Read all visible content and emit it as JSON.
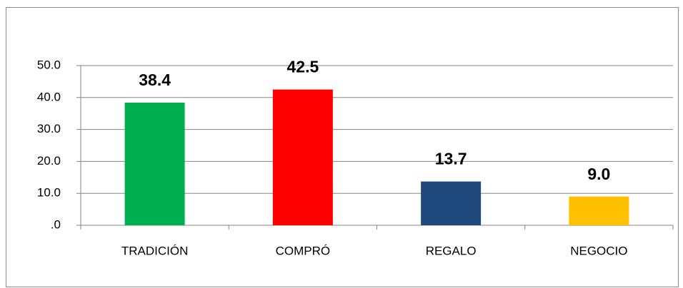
{
  "chart_data": {
    "type": "bar",
    "categories": [
      "TRADICIÓN",
      "COMPRÓ",
      "REGALO",
      "NEGOCIO"
    ],
    "values": [
      38.4,
      42.5,
      13.7,
      9.0
    ],
    "value_labels": [
      "38.4",
      "42.5",
      "13.7",
      "9.0"
    ],
    "colors": [
      "#00b050",
      "#ff0000",
      "#1f497d",
      "#ffc000"
    ],
    "ylim": [
      0,
      50
    ],
    "yticks": [
      {
        "value": 0,
        "label": ".0"
      },
      {
        "value": 10,
        "label": "10.0"
      },
      {
        "value": 20,
        "label": "20.0"
      },
      {
        "value": 30,
        "label": "30.0"
      },
      {
        "value": 40,
        "label": "40.0"
      },
      {
        "value": 50,
        "label": "50.0"
      }
    ],
    "grid": true
  }
}
